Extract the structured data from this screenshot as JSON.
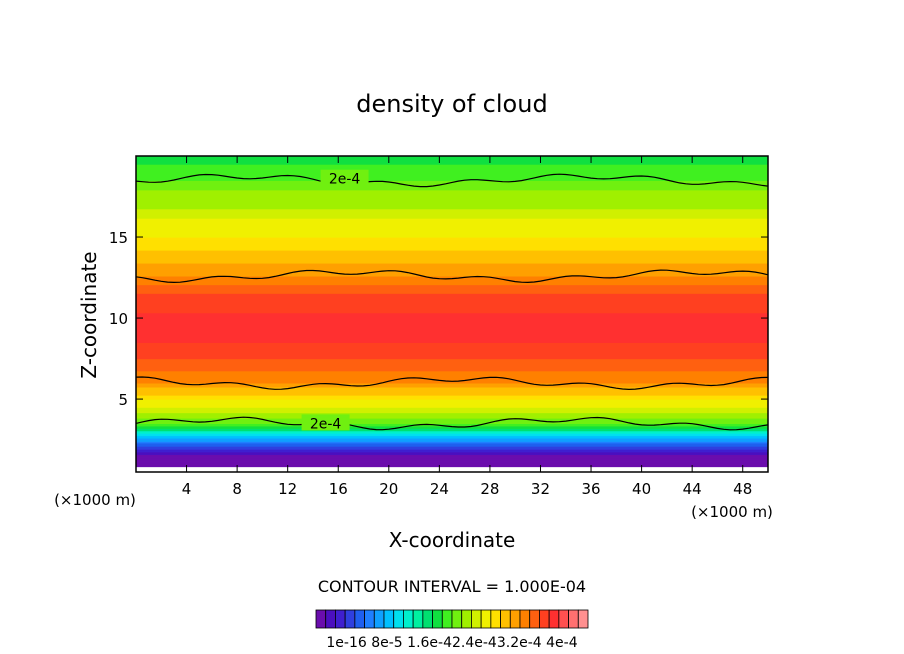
{
  "chart_data": {
    "type": "heatmap",
    "title": "density of cloud",
    "xlabel": "X-coordinate",
    "ylabel": "Z-coordinate",
    "x_unit": "(×1000 m)",
    "xlim": [
      0,
      50
    ],
    "ylim": [
      0.5,
      20
    ],
    "xticks": [
      4,
      8,
      12,
      16,
      20,
      24,
      28,
      32,
      36,
      40,
      44,
      48
    ],
    "yticks": [
      5,
      10,
      15
    ],
    "grid": false,
    "contour_interval_text": "CONTOUR INTERVAL = 1.000E-04",
    "contour_labels": [
      {
        "text": "2e-4",
        "x": 16.5,
        "y": 18.6
      },
      {
        "text": "2e-4",
        "x": 15.0,
        "y": 3.5
      }
    ],
    "colorbar_labels": [
      "1e-16",
      "8e-5",
      "1.6e-4",
      "2.4e-4",
      "3.2e-4",
      "4e-4"
    ],
    "colorbar_label_text": "1e-16  8e-5 1.6e-42.4e-43.2e-4 4e-4",
    "colorbar_colors": [
      "#6a0dad",
      "#4b0fbf",
      "#3f1fcf",
      "#2f3fdf",
      "#1f5fef",
      "#1f7fff",
      "#0fa0ff",
      "#00c0ff",
      "#00e0ee",
      "#00f0cc",
      "#00f0a0",
      "#00e070",
      "#10e040",
      "#40f020",
      "#70f010",
      "#a0f000",
      "#d0f000",
      "#f0f000",
      "#ffe000",
      "#ffc000",
      "#ffa000",
      "#ff8000",
      "#ff6010",
      "#ff4020",
      "#ff3030",
      "#ff5050",
      "#ff7070",
      "#ff9090"
    ],
    "profile_levels": [
      {
        "z": 0.8,
        "value": 1e-16
      },
      {
        "z": 1.5,
        "value": 1e-05
      },
      {
        "z": 2.0,
        "value": 5e-05
      },
      {
        "z": 2.6,
        "value": 0.0001
      },
      {
        "z": 3.5,
        "value": 0.0002
      },
      {
        "z": 4.5,
        "value": 0.00024
      },
      {
        "z": 6.0,
        "value": 0.0003
      },
      {
        "z": 7.5,
        "value": 0.00033
      },
      {
        "z": 9.0,
        "value": 0.00035
      },
      {
        "z": 11.0,
        "value": 0.00034
      },
      {
        "z": 12.6,
        "value": 0.0003
      },
      {
        "z": 15.0,
        "value": 0.00026
      },
      {
        "z": 18.5,
        "value": 0.0002
      },
      {
        "z": 20.0,
        "value": 0.00018
      }
    ]
  }
}
